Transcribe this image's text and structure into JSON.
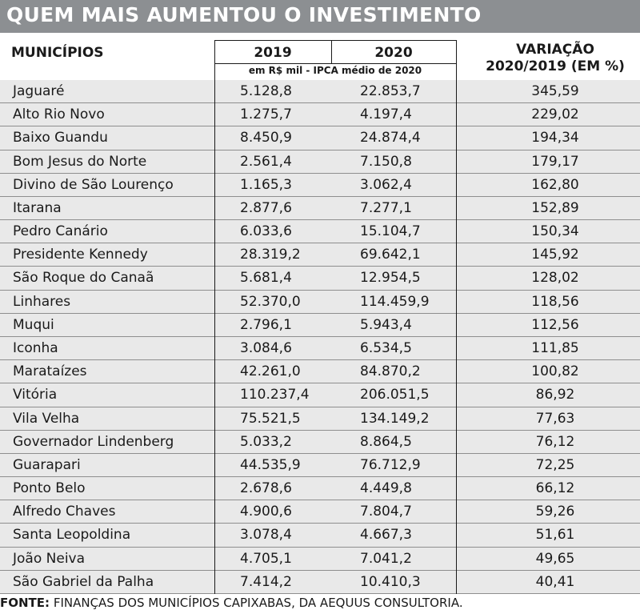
{
  "title": "QUEM MAIS AUMENTOU O INVESTIMENTO",
  "columns": {
    "municipio": "MUNICÍPIOS",
    "y2019": "2019",
    "y2020": "2020",
    "variacao_line1": "VARIAÇÃO",
    "variacao_line2": "2020/2019 (EM %)",
    "unit_note": "em R$ mil - IPCA médio de 2020"
  },
  "footer": {
    "label": "FONTE:",
    "text": "FINANÇAS DOS MUNICÍPIOS CAPIXABAS, DA AEQUUS CONSULTORIA."
  },
  "chart_data": {
    "type": "table",
    "title": "QUEM MAIS AUMENTOU O INVESTIMENTO",
    "columns": [
      "MUNICÍPIOS",
      "2019",
      "2020",
      "VARIAÇÃO 2020/2019 (EM %)"
    ],
    "rows": [
      [
        "Jaguaré",
        "5.128,8",
        "22.853,7",
        "345,59"
      ],
      [
        "Alto Rio Novo",
        "1.275,7",
        "4.197,4",
        "229,02"
      ],
      [
        "Baixo Guandu",
        "8.450,9",
        "24.874,4",
        "194,34"
      ],
      [
        "Bom Jesus do Norte",
        "2.561,4",
        "7.150,8",
        "179,17"
      ],
      [
        "Divino de São Lourenço",
        "1.165,3",
        "3.062,4",
        "162,80"
      ],
      [
        "Itarana",
        "2.877,6",
        "7.277,1",
        "152,89"
      ],
      [
        "Pedro Canário",
        "6.033,6",
        "15.104,7",
        "150,34"
      ],
      [
        "Presidente Kennedy",
        "28.319,2",
        "69.642,1",
        "145,92"
      ],
      [
        "São Roque do Canaã",
        "5.681,4",
        "12.954,5",
        "128,02"
      ],
      [
        "Linhares",
        "52.370,0",
        "114.459,9",
        "118,56"
      ],
      [
        "Muqui",
        "2.796,1",
        "5.943,4",
        "112,56"
      ],
      [
        "Iconha",
        "3.084,6",
        "6.534,5",
        "111,85"
      ],
      [
        "Marataízes",
        "42.261,0",
        "84.870,2",
        "100,82"
      ],
      [
        "Vitória",
        "110.237,4",
        "206.051,5",
        "86,92"
      ],
      [
        "Vila Velha",
        "75.521,5",
        "134.149,2",
        "77,63"
      ],
      [
        "Governador Lindenberg",
        "5.033,2",
        "8.864,5",
        "76,12"
      ],
      [
        "Guarapari",
        "44.535,9",
        "76.712,9",
        "72,25"
      ],
      [
        "Ponto Belo",
        "2.678,6",
        "4.449,8",
        "66,12"
      ],
      [
        "Alfredo Chaves",
        "4.900,6",
        "7.804,7",
        "59,26"
      ],
      [
        "Santa Leopoldina",
        "3.078,4",
        "4.667,3",
        "51,61"
      ],
      [
        "João Neiva",
        "4.705,1",
        "7.041,2",
        "49,65"
      ],
      [
        "São Gabriel da Palha",
        "7.414,2",
        "10.410,3",
        "40,41"
      ]
    ]
  },
  "colors": {
    "title_bar": "#8c8f92",
    "row_background": "#e9e9e9",
    "row_divider": "#8e8e8e"
  }
}
